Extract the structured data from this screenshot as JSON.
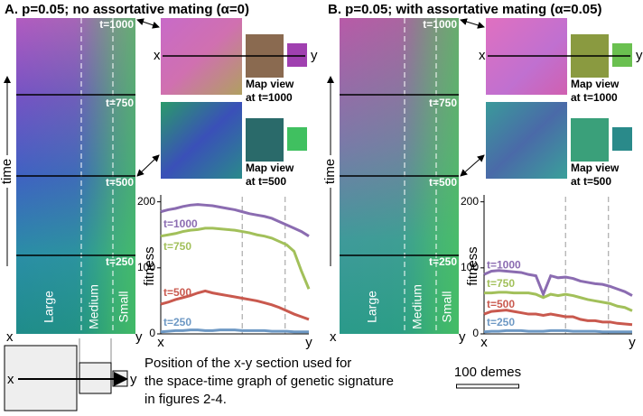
{
  "panels": [
    {
      "title": "A. p=0.05; no assortative mating (α=0)",
      "time_label": "time",
      "times": [
        "t=1000",
        "t=750",
        "t=500",
        "t=250"
      ],
      "section_labels": [
        "Large",
        "Medium",
        "Small"
      ],
      "ends": [
        "x",
        "y"
      ],
      "map_views": [
        [
          "Map view",
          "at t=1000"
        ],
        [
          "Map view",
          "at t=500"
        ]
      ],
      "map_ends": [
        "x",
        "y"
      ]
    },
    {
      "title": "B. p=0.05; with assortative mating (α=0.05)",
      "time_label": "time",
      "times": [
        "t=1000",
        "t=750",
        "t=500",
        "t=250"
      ],
      "section_labels": [
        "Large",
        "Medium",
        "Small"
      ],
      "ends": [
        "x",
        "y"
      ],
      "map_views": [
        [
          "Map view",
          "at t=1000"
        ],
        [
          "Map view",
          "at t=500"
        ]
      ],
      "map_ends": [
        "x",
        "y"
      ]
    }
  ],
  "chart_data": [
    {
      "type": "line",
      "ylabel": "fitness",
      "x_end_labels": [
        "x",
        "y"
      ],
      "categories": [
        null,
        null,
        null,
        null,
        null,
        null,
        null,
        null,
        null,
        null,
        null,
        null,
        null,
        null,
        null,
        null,
        null,
        null,
        null,
        null,
        null
      ],
      "ylim": [
        0,
        205
      ],
      "yticks": [
        0,
        100,
        200
      ],
      "series": [
        {
          "name": "t=1000",
          "color": "#8b6cb1",
          "values": [
            185,
            188,
            190,
            193,
            195,
            196,
            195,
            194,
            192,
            190,
            188,
            185,
            182,
            180,
            178,
            175,
            170,
            165,
            160,
            155,
            148
          ]
        },
        {
          "name": "t=750",
          "color": "#a2c05a",
          "values": [
            148,
            150,
            152,
            155,
            157,
            158,
            160,
            160,
            159,
            158,
            157,
            155,
            153,
            150,
            148,
            145,
            140,
            135,
            125,
            95,
            68
          ]
        },
        {
          "name": "t=500",
          "color": "#c9594e",
          "values": [
            45,
            48,
            52,
            55,
            58,
            62,
            65,
            62,
            60,
            58,
            56,
            54,
            52,
            50,
            47,
            44,
            40,
            35,
            30,
            26,
            22
          ]
        },
        {
          "name": "t=250",
          "color": "#6d98c4",
          "values": [
            3,
            4,
            5,
            5,
            6,
            6,
            5,
            5,
            6,
            6,
            6,
            5,
            5,
            5,
            5,
            4,
            4,
            4,
            3,
            3,
            3
          ]
        }
      ]
    },
    {
      "type": "line",
      "ylabel": "fitness",
      "x_end_labels": [
        "x",
        "y"
      ],
      "categories": [
        null,
        null,
        null,
        null,
        null,
        null,
        null,
        null,
        null,
        null,
        null,
        null,
        null,
        null,
        null,
        null,
        null,
        null,
        null,
        null,
        null
      ],
      "ylim": [
        0,
        205
      ],
      "yticks": [
        0,
        100,
        200
      ],
      "series": [
        {
          "name": "t=1000",
          "color": "#8b6cb1",
          "values": [
            90,
            95,
            96,
            95,
            94,
            93,
            90,
            88,
            60,
            88,
            85,
            86,
            84,
            80,
            78,
            76,
            75,
            72,
            68,
            64,
            58
          ]
        },
        {
          "name": "t=750",
          "color": "#a2c05a",
          "values": [
            62,
            62,
            63,
            63,
            62,
            62,
            62,
            60,
            55,
            60,
            58,
            60,
            58,
            55,
            52,
            50,
            48,
            46,
            42,
            40,
            35
          ]
        },
        {
          "name": "t=500",
          "color": "#c9594e",
          "values": [
            30,
            34,
            35,
            36,
            34,
            32,
            30,
            30,
            28,
            30,
            28,
            26,
            26,
            22,
            20,
            20,
            18,
            18,
            16,
            15,
            14
          ]
        },
        {
          "name": "t=250",
          "color": "#6d98c4",
          "values": [
            3,
            4,
            4,
            5,
            5,
            5,
            4,
            4,
            4,
            5,
            5,
            5,
            4,
            4,
            4,
            4,
            3,
            3,
            3,
            3,
            3
          ]
        }
      ]
    }
  ],
  "diagram": {
    "ends": [
      "x",
      "y"
    ],
    "caption": [
      "Position of the x-y section used for",
      "the space-time graph of genetic signature",
      "in figures 2-4."
    ],
    "scale_bar": "100 demes"
  }
}
